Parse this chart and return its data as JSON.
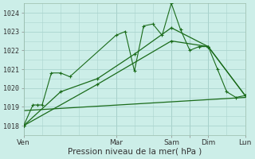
{
  "background_color": "#cceee8",
  "grid_color": "#aad4ce",
  "line_color": "#1a6b1a",
  "xlim": [
    0,
    144
  ],
  "ylim": [
    1017.5,
    1024.5
  ],
  "yticks": [
    1018,
    1019,
    1020,
    1021,
    1022,
    1023,
    1024
  ],
  "xtick_positions": [
    0,
    60,
    96,
    108,
    120,
    144
  ],
  "xtick_labels": [
    "Ven",
    "Mar",
    "Sam",
    "",
    "Dim",
    "Lun"
  ],
  "xlabel": "Pression niveau de la mer( hPa )",
  "vlines": [
    0,
    60,
    96,
    108,
    120,
    144
  ],
  "series1_x": [
    0,
    6,
    9,
    12,
    18,
    24,
    30,
    60,
    66,
    72,
    78,
    84,
    90,
    96,
    102,
    108,
    114,
    120,
    126,
    132,
    138,
    144
  ],
  "series1_y": [
    1018.0,
    1019.1,
    1019.1,
    1019.1,
    1020.8,
    1020.8,
    1020.6,
    1022.8,
    1023.0,
    1020.9,
    1023.3,
    1023.4,
    1022.8,
    1024.5,
    1023.1,
    1022.0,
    1022.2,
    1022.2,
    1021.0,
    1019.8,
    1019.5,
    1019.6
  ],
  "series2_x": [
    0,
    24,
    48,
    72,
    96,
    120,
    144
  ],
  "series2_y": [
    1018.0,
    1019.8,
    1020.5,
    1021.8,
    1023.2,
    1022.2,
    1019.6
  ],
  "series3_x": [
    0,
    48,
    96,
    120,
    144
  ],
  "series3_y": [
    1018.0,
    1020.2,
    1022.5,
    1022.2,
    1019.6
  ],
  "series4_x": [
    0,
    144
  ],
  "series4_y": [
    1018.8,
    1019.5
  ]
}
